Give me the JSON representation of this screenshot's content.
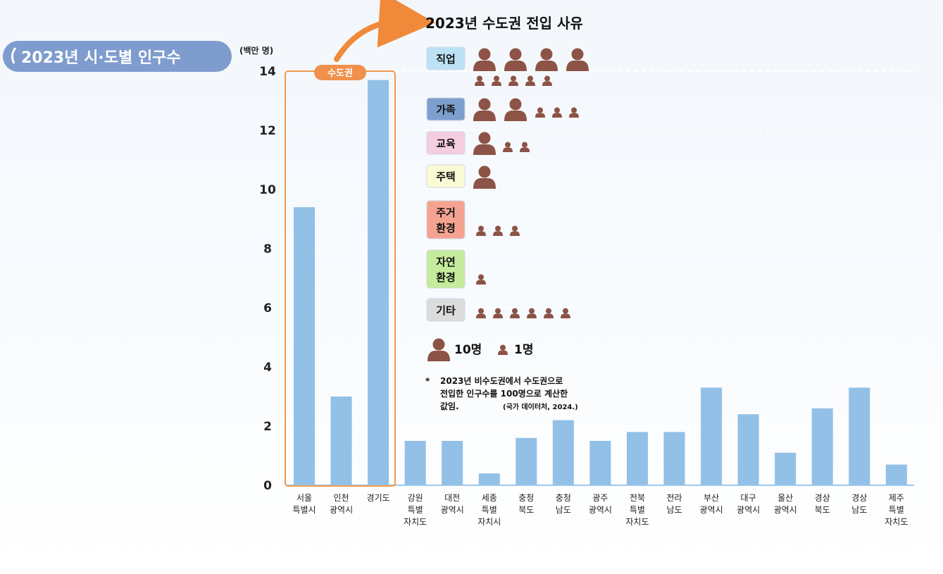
{
  "chart_data": {
    "type": "bar",
    "title": "2023년 시·도별 인구수",
    "ylabel": "(백만 명)",
    "ylim": [
      0,
      14
    ],
    "yticks": [
      0,
      2,
      4,
      6,
      8,
      10,
      12,
      14
    ],
    "categories": [
      [
        "서울",
        "특별시"
      ],
      [
        "인천",
        "광역시"
      ],
      [
        "경기도"
      ],
      [
        "강원",
        "특별",
        "자치도"
      ],
      [
        "대전",
        "광역시"
      ],
      [
        "세종",
        "특별",
        "자치시"
      ],
      [
        "충청",
        "북도"
      ],
      [
        "충청",
        "남도"
      ],
      [
        "광주",
        "광역시"
      ],
      [
        "전북",
        "특별",
        "자치도"
      ],
      [
        "전라",
        "남도"
      ],
      [
        "부산",
        "광역시"
      ],
      [
        "대구",
        "광역시"
      ],
      [
        "울산",
        "광역시"
      ],
      [
        "경상",
        "북도"
      ],
      [
        "경상",
        "남도"
      ],
      [
        "제주",
        "특별",
        "자치도"
      ]
    ],
    "values": [
      9.4,
      3.0,
      13.7,
      1.5,
      1.5,
      0.4,
      1.6,
      2.2,
      1.5,
      1.8,
      1.8,
      3.3,
      2.4,
      1.1,
      2.6,
      3.3,
      0.7
    ],
    "highlight": {
      "label": "수도권",
      "categories": [
        "서울",
        "인천",
        "경기도"
      ]
    },
    "grid": true,
    "colors": {
      "bar": "#92c0e6",
      "highlight_box": "#f09a4e",
      "title_bg": "#7e9ccd",
      "icon": "#8c5346"
    }
  },
  "pictogram": {
    "title": "2023년 수도권 전입 사유",
    "reasons": [
      {
        "label": [
          "직업"
        ],
        "big": 4,
        "small": 5,
        "color": "#bde2f6"
      },
      {
        "label": [
          "가족"
        ],
        "big": 2,
        "small": 3,
        "color": "#7d9fcf"
      },
      {
        "label": [
          "교육"
        ],
        "big": 1,
        "small": 2,
        "color": "#f5cde0"
      },
      {
        "label": [
          "주택"
        ],
        "big": 1,
        "small": 0,
        "color": "#fafbd5"
      },
      {
        "label": [
          "주거",
          "환경"
        ],
        "big": 0,
        "small": 3,
        "color": "#f5a391"
      },
      {
        "label": [
          "자연",
          "환경"
        ],
        "big": 0,
        "small": 1,
        "color": "#c6eb9c"
      },
      {
        "label": [
          "기타"
        ],
        "big": 0,
        "small": 6,
        "color": "#dcdcdc"
      }
    ],
    "legend": {
      "big_label": "10명",
      "small_label": "1명"
    },
    "note": [
      "2023년 비수도권에서 수도권으로",
      "전입한 인구수를 100명으로 계산한",
      "값임."
    ],
    "note_marker": "*",
    "source": "(국가 데이터처, 2024.)"
  }
}
